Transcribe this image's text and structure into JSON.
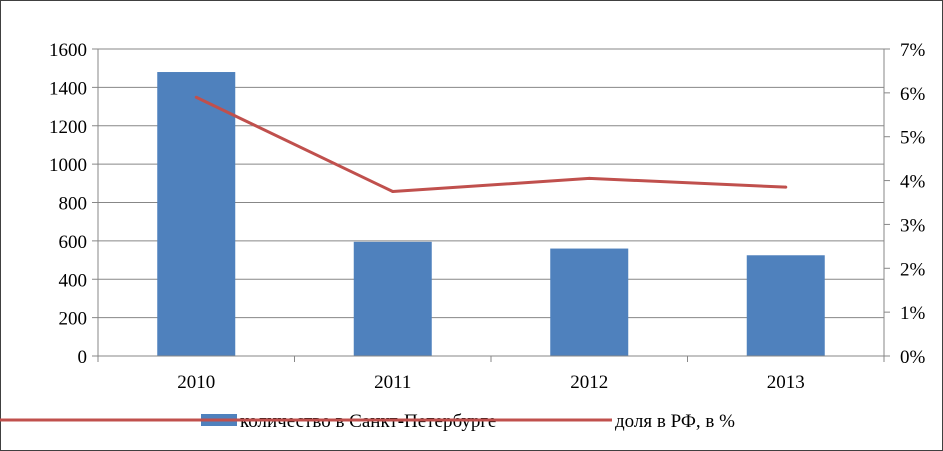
{
  "chart_data": {
    "type": "bar",
    "categories": [
      "2010",
      "2011",
      "2012",
      "2013"
    ],
    "series": [
      {
        "name": "количество в Санкт-Петербурге",
        "type": "bar",
        "axis": "left",
        "color": "#4F81BD",
        "values": [
          1480,
          595,
          560,
          525
        ]
      },
      {
        "name": "доля в РФ, в %",
        "type": "line",
        "axis": "right",
        "color": "#C0504D",
        "values": [
          5.9,
          3.75,
          4.05,
          3.85
        ]
      }
    ],
    "y_left": {
      "min": 0,
      "max": 1600,
      "ticks": [
        "0",
        "200",
        "400",
        "600",
        "800",
        "1000",
        "1200",
        "1400",
        "1600"
      ]
    },
    "y_right": {
      "min": 0,
      "max": 7,
      "ticks": [
        "0%",
        "1%",
        "2%",
        "3%",
        "4%",
        "5%",
        "6%",
        "7%"
      ]
    },
    "grid": true,
    "legend_position": "bottom"
  }
}
